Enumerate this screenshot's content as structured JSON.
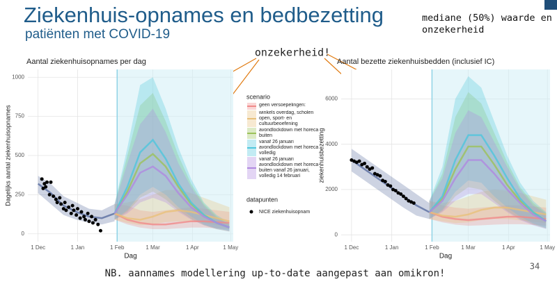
{
  "slide": {
    "title": "Ziekenhuis-opnames en bedbezetting",
    "subtitle": "patiënten met COVID-19",
    "note_top": "mediane (50%) waarde en onzekerheid",
    "callout": "onzekerheid!",
    "footer": "NB. aannames modellering up-to-date aangepast aan omikron!",
    "page": "34"
  },
  "chart_data": [
    {
      "type": "line",
      "title": "Aantal ziekenhuisopnames per dag",
      "xlabel": "Dag",
      "ylabel": "Dagelijks aantal ziekenhuisopnames",
      "xlim": [
        -8,
        153
      ],
      "ylim": [
        -50,
        1050
      ],
      "xticks": [
        {
          "value": 0,
          "label": "1 Dec"
        },
        {
          "value": 31,
          "label": "1 Jan"
        },
        {
          "value": 62,
          "label": "1 Feb"
        },
        {
          "value": 90,
          "label": "1 Mar"
        },
        {
          "value": 121,
          "label": "1 Apr"
        },
        {
          "value": 151,
          "label": "1 May"
        }
      ],
      "yticks": [
        0,
        250,
        500,
        750,
        1000
      ],
      "grid": true,
      "legend_title": "scenario",
      "points_legend_title": "datapunten",
      "series": [
        {
          "color": "#5a6ea0",
          "x": [
            0,
            10,
            20,
            30,
            40,
            50,
            60
          ],
          "values": [
            320,
            260,
            180,
            140,
            110,
            100,
            130
          ],
          "lower": [
            260,
            190,
            120,
            90,
            70,
            60,
            80
          ],
          "upper": [
            370,
            320,
            240,
            200,
            160,
            150,
            190
          ]
        },
        {
          "name": "geen versoepelingen:",
          "color": "#f08a8a",
          "x": [
            60,
            70,
            80,
            90,
            100,
            110,
            120,
            130,
            140,
            150
          ],
          "values": [
            130,
            90,
            70,
            60,
            60,
            70,
            80,
            80,
            75,
            70
          ],
          "lower": [
            90,
            60,
            40,
            30,
            30,
            35,
            40,
            40,
            35,
            30
          ],
          "upper": [
            190,
            180,
            150,
            140,
            150,
            160,
            170,
            160,
            150,
            140
          ]
        },
        {
          "name": "winkels overdag, scholen open, sport- en cultuurbeoefening",
          "color": "#e8c07a",
          "x": [
            60,
            70,
            80,
            90,
            100,
            110,
            120,
            130,
            140,
            150
          ],
          "values": [
            130,
            100,
            90,
            110,
            140,
            150,
            140,
            120,
            100,
            80
          ],
          "lower": [
            90,
            70,
            55,
            60,
            75,
            80,
            80,
            70,
            55,
            45
          ],
          "upper": [
            190,
            200,
            220,
            250,
            280,
            280,
            260,
            230,
            200,
            170
          ]
        },
        {
          "name": "avondlockdown met horeca buiten",
          "color": "#9cc25a",
          "x": [
            60,
            70,
            80,
            90,
            100,
            110,
            120,
            130,
            140,
            150
          ],
          "values": [
            130,
            270,
            450,
            510,
            430,
            300,
            190,
            120,
            70,
            40
          ],
          "lower": [
            90,
            140,
            230,
            270,
            220,
            150,
            95,
            55,
            30,
            15
          ],
          "upper": [
            190,
            500,
            820,
            900,
            720,
            500,
            320,
            190,
            110,
            60
          ]
        },
        {
          "name": "vanaf 26 januari avondlockdown met horeca volledig",
          "color": "#4fc6dc",
          "x": [
            60,
            70,
            80,
            90,
            100,
            110,
            120,
            130,
            140,
            150
          ],
          "values": [
            130,
            300,
            520,
            600,
            480,
            320,
            200,
            120,
            70,
            40
          ],
          "lower": [
            90,
            150,
            250,
            300,
            250,
            170,
            110,
            60,
            35,
            20
          ],
          "upper": [
            190,
            550,
            950,
            1000,
            800,
            550,
            350,
            200,
            120,
            70
          ]
        },
        {
          "name": "vanaf 26 januari avondlockdown met horeca buiten vanaf 26 januari, volledig 14 februari",
          "color": "#b088e0",
          "x": [
            60,
            70,
            80,
            90,
            100,
            110,
            120,
            130,
            140,
            150
          ],
          "values": [
            130,
            250,
            390,
            430,
            370,
            260,
            170,
            110,
            70,
            40
          ],
          "lower": [
            90,
            130,
            200,
            230,
            200,
            140,
            90,
            55,
            30,
            15
          ],
          "upper": [
            190,
            450,
            700,
            800,
            650,
            450,
            300,
            180,
            100,
            60
          ]
        },
        {
          "type": "scatter",
          "name": "NICE ziekenhuisopnam",
          "color": "#000000",
          "x": [
            3,
            4,
            5,
            6,
            7,
            9,
            10,
            12,
            14,
            15,
            17,
            18,
            20,
            21,
            22,
            24,
            26,
            27,
            28,
            30,
            31,
            33,
            34,
            36,
            37,
            39,
            40,
            42,
            43,
            45,
            47,
            49
          ],
          "values": [
            350,
            290,
            320,
            300,
            330,
            250,
            330,
            240,
            220,
            200,
            230,
            190,
            160,
            200,
            150,
            170,
            130,
            180,
            150,
            120,
            160,
            100,
            140,
            110,
            90,
            130,
            80,
            110,
            70,
            90,
            60,
            20
          ]
        }
      ]
    },
    {
      "type": "line",
      "title": "Aantal bezette ziekenhuisbedden (inclusief IC)",
      "xlabel": "Dag",
      "ylabel": "ziekenhuisbezetting",
      "xlim": [
        -8,
        153
      ],
      "ylim": [
        -300,
        7300
      ],
      "xticks": [
        {
          "value": 0,
          "label": "1 Dec"
        },
        {
          "value": 31,
          "label": "1 Jan"
        },
        {
          "value": 62,
          "label": "1 Feb"
        },
        {
          "value": 90,
          "label": "1 Mar"
        },
        {
          "value": 121,
          "label": "1 Apr"
        },
        {
          "value": 151,
          "label": "1 May"
        }
      ],
      "yticks": [
        0,
        2000,
        4000,
        6000
      ],
      "grid": true,
      "series": [
        {
          "color": "#5a6ea0",
          "x": [
            0,
            10,
            20,
            30,
            40,
            50,
            60
          ],
          "values": [
            3300,
            2900,
            2500,
            2100,
            1700,
            1300,
            1000
          ],
          "lower": [
            2800,
            2400,
            2000,
            1600,
            1200,
            850,
            700
          ],
          "upper": [
            3800,
            3400,
            3000,
            2600,
            2200,
            1800,
            1400
          ]
        },
        {
          "color": "#f08a8a",
          "x": [
            60,
            70,
            80,
            90,
            100,
            110,
            120,
            130,
            140,
            150
          ],
          "values": [
            1000,
            800,
            700,
            650,
            700,
            750,
            800,
            800,
            750,
            700
          ],
          "lower": [
            700,
            550,
            450,
            400,
            420,
            450,
            470,
            470,
            440,
            400
          ],
          "upper": [
            1500,
            1300,
            1200,
            1150,
            1200,
            1250,
            1300,
            1300,
            1250,
            1200
          ]
        },
        {
          "color": "#e8c07a",
          "x": [
            60,
            70,
            80,
            90,
            100,
            110,
            120,
            130,
            140,
            150
          ],
          "values": [
            1000,
            850,
            800,
            900,
            1100,
            1200,
            1200,
            1100,
            1000,
            900
          ],
          "lower": [
            700,
            600,
            520,
            550,
            650,
            700,
            700,
            640,
            580,
            520
          ],
          "upper": [
            1500,
            1400,
            1500,
            1700,
            1900,
            2000,
            1950,
            1850,
            1700,
            1550
          ]
        },
        {
          "color": "#9cc25a",
          "x": [
            60,
            70,
            80,
            90,
            100,
            110,
            120,
            130,
            140,
            150
          ],
          "values": [
            1000,
            1600,
            2900,
            3900,
            3900,
            3100,
            2200,
            1500,
            1000,
            600
          ],
          "lower": [
            700,
            1050,
            1700,
            2100,
            2000,
            1500,
            1050,
            700,
            450,
            280
          ],
          "upper": [
            1500,
            2700,
            5200,
            6300,
            5800,
            4500,
            3200,
            2100,
            1400,
            950
          ]
        },
        {
          "color": "#4fc6dc",
          "x": [
            60,
            70,
            80,
            90,
            100,
            110,
            120,
            130,
            140,
            150
          ],
          "values": [
            1000,
            1700,
            3300,
            4400,
            4400,
            3500,
            2500,
            1600,
            1000,
            600
          ],
          "lower": [
            700,
            1100,
            1900,
            2400,
            2300,
            1700,
            1200,
            800,
            500,
            300
          ],
          "upper": [
            1500,
            3000,
            6000,
            7000,
            6500,
            5000,
            3500,
            2300,
            1500,
            1000
          ]
        },
        {
          "color": "#b088e0",
          "x": [
            60,
            70,
            80,
            90,
            100,
            110,
            120,
            130,
            140,
            150
          ],
          "values": [
            1000,
            1500,
            2500,
            3300,
            3300,
            2700,
            2000,
            1400,
            900,
            600
          ],
          "lower": [
            700,
            1000,
            1500,
            1800,
            1800,
            1400,
            1000,
            650,
            420,
            260
          ],
          "upper": [
            1500,
            2500,
            4500,
            5500,
            5200,
            4100,
            3000,
            2000,
            1300,
            900
          ]
        },
        {
          "type": "scatter",
          "color": "#000000",
          "x": [
            0,
            2,
            4,
            6,
            8,
            10,
            12,
            14,
            16,
            18,
            20,
            22,
            24,
            26,
            28,
            30,
            32,
            34,
            36,
            38,
            40,
            42,
            44,
            46,
            48
          ],
          "values": [
            3300,
            3250,
            3200,
            3250,
            3100,
            3150,
            3000,
            2900,
            2950,
            2700,
            2650,
            2600,
            2400,
            2350,
            2200,
            2150,
            2000,
            1950,
            1850,
            1800,
            1700,
            1600,
            1500,
            1450,
            1400
          ]
        }
      ]
    }
  ]
}
